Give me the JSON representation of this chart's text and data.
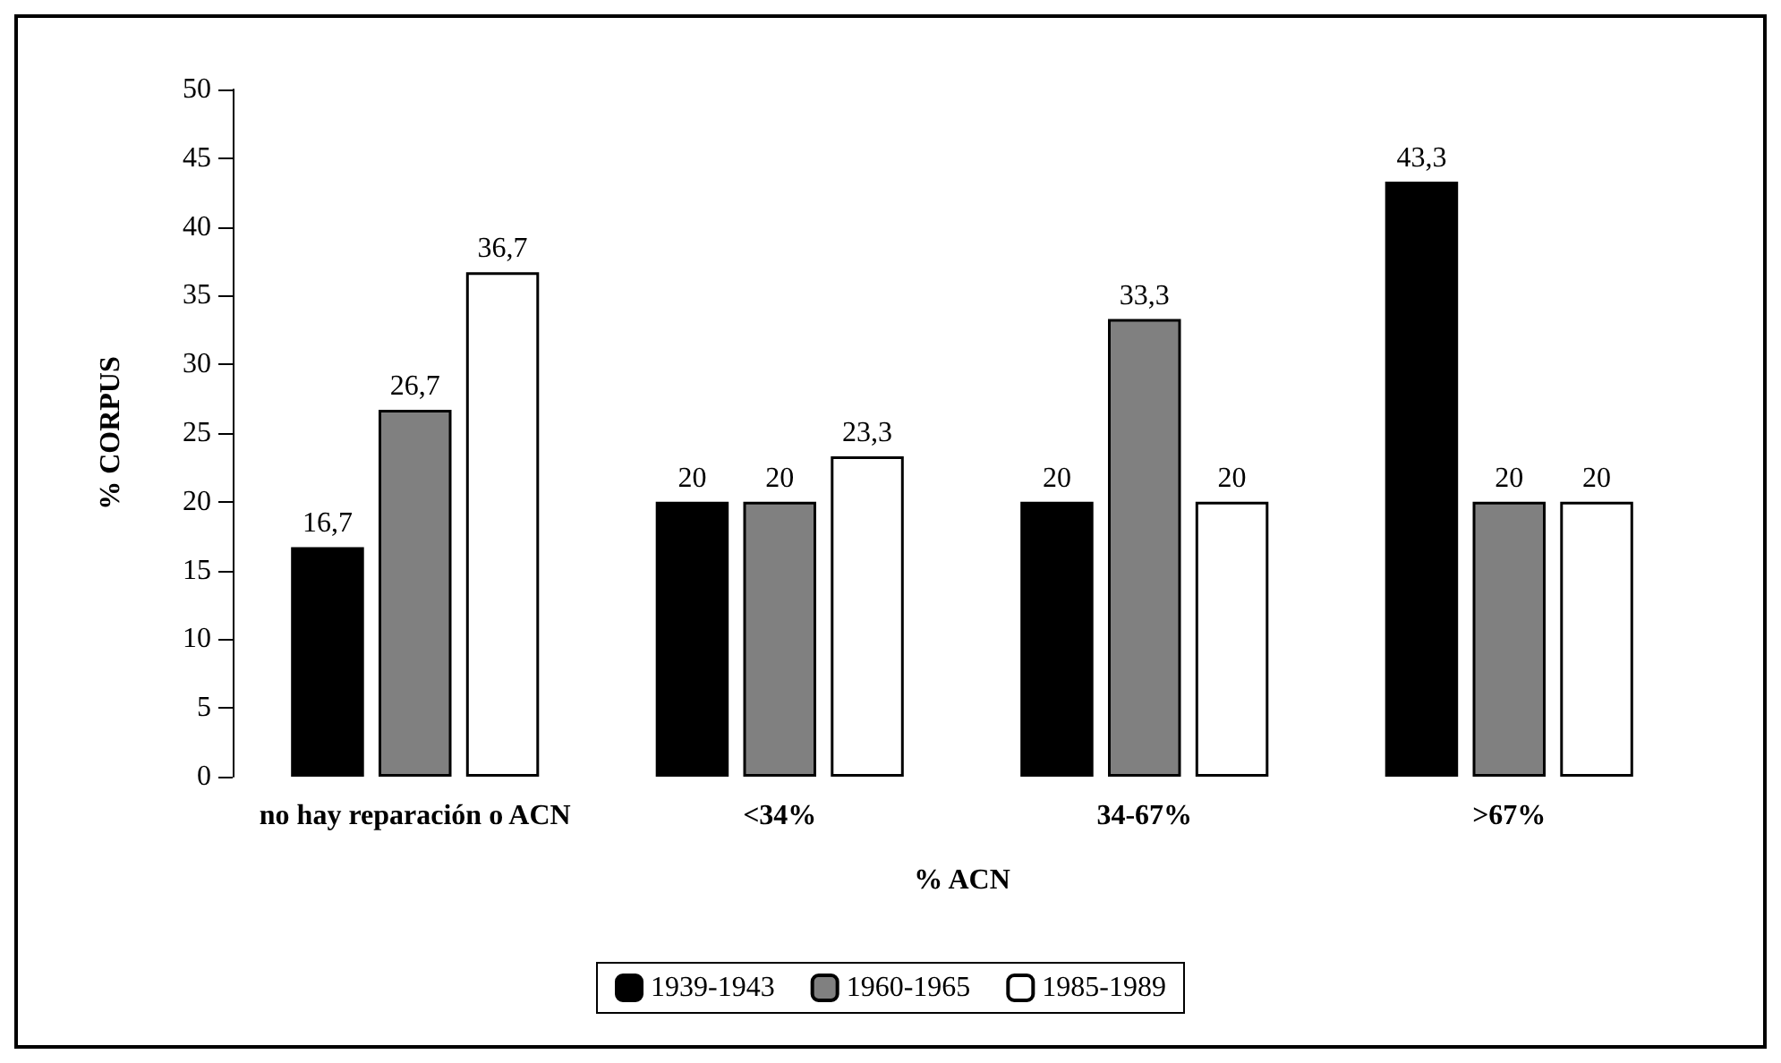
{
  "chart_data": {
    "type": "bar",
    "xlabel": "% ACN",
    "ylabel": "% CORPUS",
    "categories": [
      "no hay reparación o ACN",
      "<34%",
      "34-67%",
      ">67%"
    ],
    "series": [
      {
        "name": "1939-1943",
        "color": "#000000",
        "values": [
          16.7,
          20,
          20,
          43.3
        ],
        "value_labels": [
          "16,7",
          "20",
          "20",
          "43,3"
        ]
      },
      {
        "name": "1960-1965",
        "color": "#808080",
        "values": [
          26.7,
          20,
          33.3,
          20
        ],
        "value_labels": [
          "26,7",
          "20",
          "33,3",
          "20"
        ]
      },
      {
        "name": "1985-1989",
        "color": "#ffffff",
        "values": [
          36.7,
          23.3,
          20,
          20
        ],
        "value_labels": [
          "36,7",
          "23,3",
          "20",
          "20"
        ]
      }
    ],
    "ylim": [
      0,
      50
    ],
    "yticks": [
      0,
      5,
      10,
      15,
      20,
      25,
      30,
      35,
      40,
      45,
      50
    ],
    "grid": false,
    "legend": "bottom"
  }
}
